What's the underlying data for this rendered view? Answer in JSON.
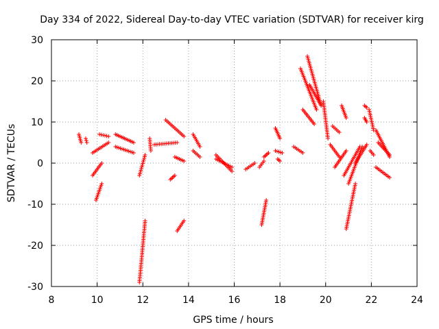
{
  "chart_data": {
    "type": "scatter",
    "title": "Day 334 of 2022, Sidereal Day-to-day VTEC variation (SDTVAR) for receiver kirg",
    "xlabel": "GPS time / hours",
    "ylabel": "SDTVAR / TECUs",
    "xlim": [
      8,
      24
    ],
    "ylim": [
      -30,
      30
    ],
    "xticks": [
      "8",
      "10",
      "12",
      "14",
      "16",
      "18",
      "20",
      "22",
      "24"
    ],
    "yticks": [
      "-30",
      "-20",
      "-10",
      "0",
      "10",
      "20",
      "30"
    ],
    "grid": true,
    "marker": "+",
    "color": "#ff0000",
    "segments": [
      {
        "x": [
          9.2,
          9.3
        ],
        "y": [
          7,
          5
        ]
      },
      {
        "x": [
          9.5,
          9.55
        ],
        "y": [
          6,
          5
        ]
      },
      {
        "x": [
          9.8,
          10.5
        ],
        "y": [
          2.5,
          5
        ]
      },
      {
        "x": [
          10.1,
          10.5
        ],
        "y": [
          7,
          6.5
        ]
      },
      {
        "x": [
          9.8,
          10.2
        ],
        "y": [
          -3,
          0
        ]
      },
      {
        "x": [
          9.95,
          10.2
        ],
        "y": [
          -9,
          -5
        ]
      },
      {
        "x": [
          10.8,
          11.6
        ],
        "y": [
          7,
          5
        ]
      },
      {
        "x": [
          10.8,
          11.6
        ],
        "y": [
          4,
          2.5
        ]
      },
      {
        "x": [
          11.85,
          12.1
        ],
        "y": [
          -29,
          -14
        ]
      },
      {
        "x": [
          11.85,
          12.1
        ],
        "y": [
          -3,
          2
        ]
      },
      {
        "x": [
          12.3,
          12.35
        ],
        "y": [
          6,
          3
        ]
      },
      {
        "x": [
          12.5,
          13.5
        ],
        "y": [
          4.5,
          5
        ]
      },
      {
        "x": [
          13.0,
          13.8
        ],
        "y": [
          10.5,
          6.5
        ]
      },
      {
        "x": [
          13.2,
          13.4
        ],
        "y": [
          -4,
          -3
        ]
      },
      {
        "x": [
          13.4,
          13.8
        ],
        "y": [
          1.5,
          0.5
        ]
      },
      {
        "x": [
          13.5,
          13.8
        ],
        "y": [
          -16.5,
          -14
        ]
      },
      {
        "x": [
          14.2,
          14.5
        ],
        "y": [
          7,
          4
        ]
      },
      {
        "x": [
          14.2,
          14.5
        ],
        "y": [
          3,
          1.5
        ]
      },
      {
        "x": [
          15.2,
          15.9
        ],
        "y": [
          2,
          -2
        ]
      },
      {
        "x": [
          15.2,
          15.9
        ],
        "y": [
          1,
          -1
        ]
      },
      {
        "x": [
          16.5,
          16.9
        ],
        "y": [
          -1.5,
          0
        ]
      },
      {
        "x": [
          17.1,
          17.3
        ],
        "y": [
          -1,
          0.5
        ]
      },
      {
        "x": [
          17.2,
          17.4
        ],
        "y": [
          -15,
          -9
        ]
      },
      {
        "x": [
          17.3,
          17.5
        ],
        "y": [
          1.5,
          2.5
        ]
      },
      {
        "x": [
          17.8,
          18.0
        ],
        "y": [
          8.5,
          6
        ]
      },
      {
        "x": [
          17.8,
          18.1
        ],
        "y": [
          3,
          2.5
        ]
      },
      {
        "x": [
          17.9,
          18.0
        ],
        "y": [
          1,
          0.5
        ]
      },
      {
        "x": [
          18.6,
          19.0
        ],
        "y": [
          4,
          2.5
        ]
      },
      {
        "x": [
          18.9,
          19.6
        ],
        "y": [
          23,
          13
        ]
      },
      {
        "x": [
          19.0,
          19.5
        ],
        "y": [
          13,
          9.5
        ]
      },
      {
        "x": [
          19.2,
          19.8
        ],
        "y": [
          26,
          14
        ]
      },
      {
        "x": [
          19.3,
          19.8
        ],
        "y": [
          19,
          14
        ]
      },
      {
        "x": [
          19.9,
          20.1
        ],
        "y": [
          15,
          6
        ]
      },
      {
        "x": [
          20.3,
          20.6
        ],
        "y": [
          9,
          7.5
        ]
      },
      {
        "x": [
          20.2,
          20.6
        ],
        "y": [
          4.5,
          1.5
        ]
      },
      {
        "x": [
          20.4,
          20.9
        ],
        "y": [
          -1,
          3
        ]
      },
      {
        "x": [
          20.7,
          20.9
        ],
        "y": [
          14,
          11
        ]
      },
      {
        "x": [
          20.8,
          21.5
        ],
        "y": [
          -3,
          4
        ]
      },
      {
        "x": [
          20.9,
          21.3
        ],
        "y": [
          -16,
          -5
        ]
      },
      {
        "x": [
          21.0,
          21.6
        ],
        "y": [
          -5,
          4
        ]
      },
      {
        "x": [
          21.3,
          21.8
        ],
        "y": [
          0,
          4.5
        ]
      },
      {
        "x": [
          21.7,
          21.8
        ],
        "y": [
          14,
          13.5
        ]
      },
      {
        "x": [
          21.7,
          21.8
        ],
        "y": [
          11,
          10
        ]
      },
      {
        "x": [
          21.9,
          22.1
        ],
        "y": [
          13,
          8
        ]
      },
      {
        "x": [
          21.95,
          22.1
        ],
        "y": [
          3,
          2
        ]
      },
      {
        "x": [
          22.2,
          22.8
        ],
        "y": [
          8,
          1.5
        ]
      },
      {
        "x": [
          22.3,
          22.8
        ],
        "y": [
          5,
          2
        ]
      },
      {
        "x": [
          22.2,
          22.8
        ],
        "y": [
          -1,
          -3.5
        ]
      }
    ]
  }
}
